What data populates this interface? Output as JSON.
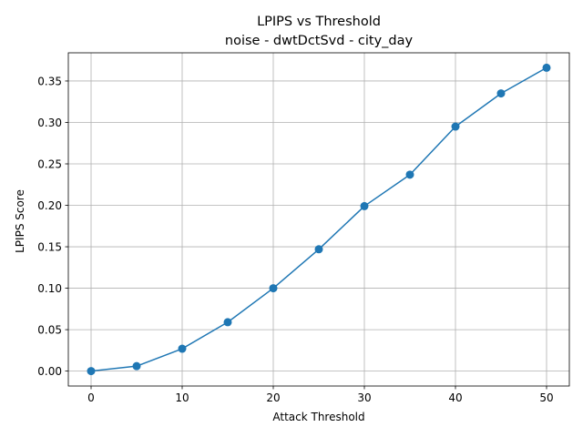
{
  "chart_data": {
    "type": "line",
    "title": "LPIPS vs Threshold",
    "subtitle": "noise - dwtDctSvd - city_day",
    "xlabel": "Attack Threshold",
    "ylabel": "LPIPS Score",
    "xlim": [
      -2.5,
      52.5
    ],
    "ylim": [
      -0.018,
      0.384
    ],
    "xticks": [
      0,
      10,
      20,
      30,
      40,
      50
    ],
    "yticks": [
      0.0,
      0.05,
      0.1,
      0.15,
      0.2,
      0.25,
      0.3,
      0.35
    ],
    "ytick_labels": [
      "0.00",
      "0.05",
      "0.10",
      "0.15",
      "0.20",
      "0.25",
      "0.30",
      "0.35"
    ],
    "grid": true,
    "series": [
      {
        "color": "#1f77b4",
        "marker": "circle",
        "x": [
          0,
          5,
          10,
          15,
          20,
          25,
          30,
          35,
          40,
          45,
          50
        ],
        "y": [
          0.0,
          0.006,
          0.027,
          0.059,
          0.1,
          0.147,
          0.199,
          0.237,
          0.295,
          0.335,
          0.366
        ]
      }
    ]
  },
  "colors": {
    "grid": "#b0b0b0",
    "axes": "#000000",
    "background": "#ffffff"
  }
}
